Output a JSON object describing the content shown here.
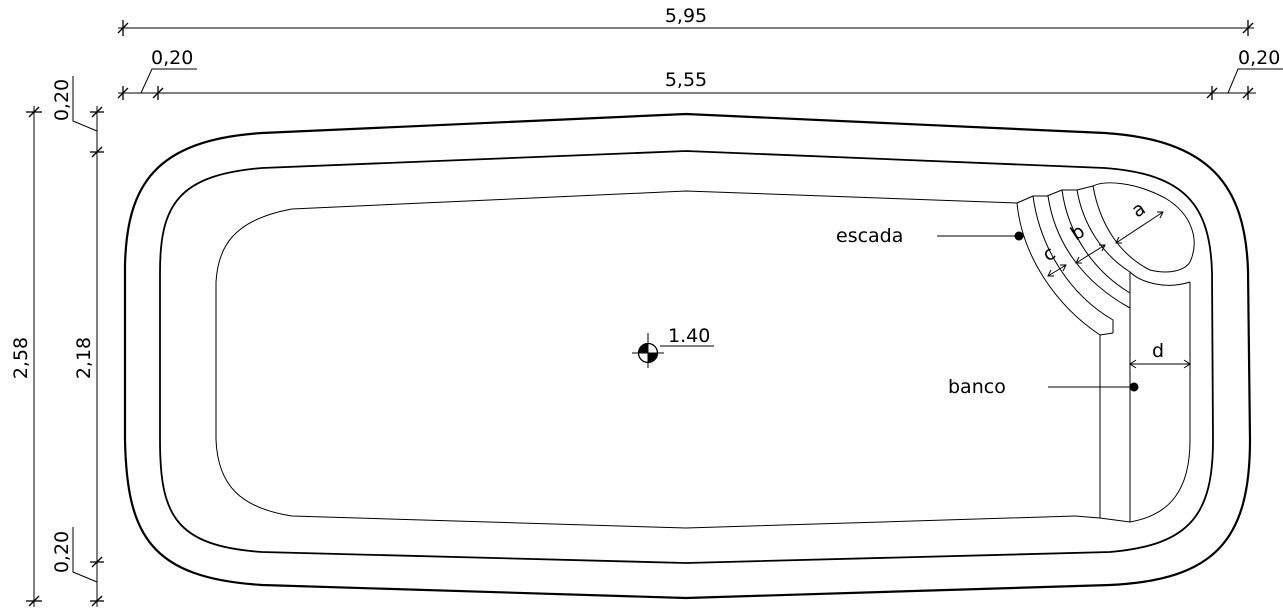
{
  "dimensions": {
    "total_length": "5,95",
    "inner_length": "5,55",
    "left_rim": "0,20",
    "right_rim": "0,20",
    "total_width": "2,58",
    "inner_width": "2,18",
    "top_rim": "0,20",
    "bottom_rim": "0,20"
  },
  "depth_marker": "1.40",
  "callouts": {
    "stairs": "escada",
    "bench": "banco"
  },
  "measure_letters": {
    "a": "a",
    "b": "b",
    "c": "c",
    "d": "d"
  }
}
